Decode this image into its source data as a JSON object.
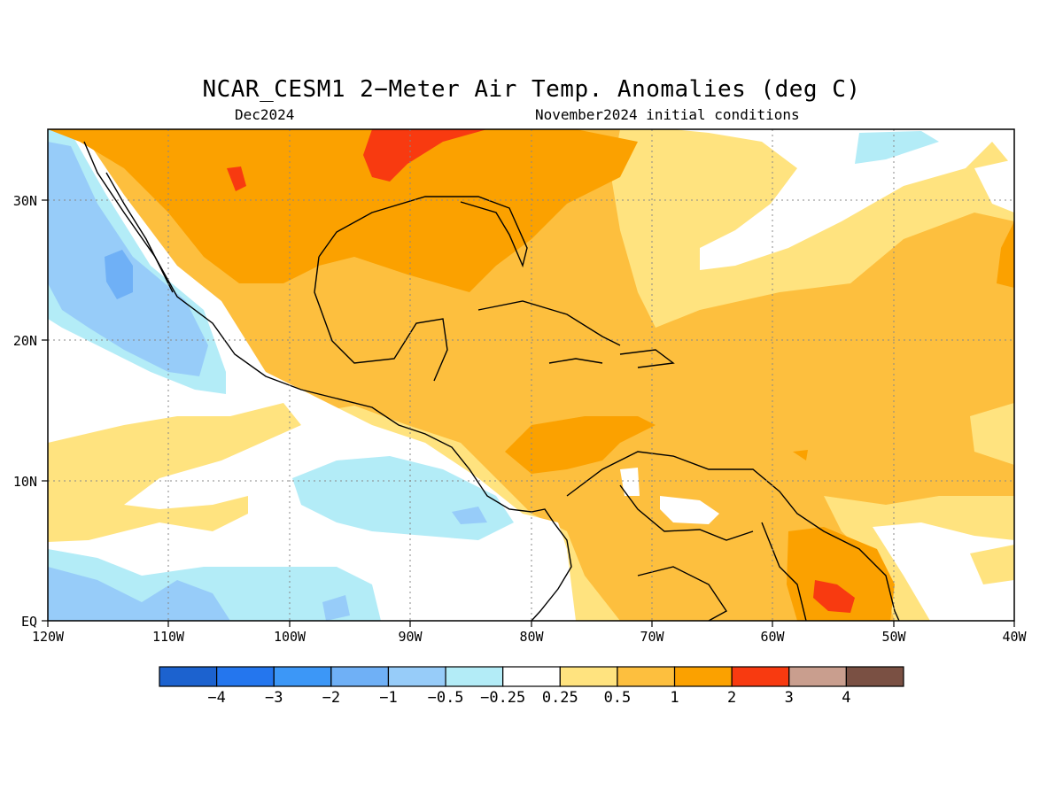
{
  "title": "NCAR_CESM1 2−Meter Air Temp. Anomalies (deg C)",
  "subtitle_left": "Dec2024",
  "subtitle_right": "November2024 initial conditions",
  "map": {
    "region": "Gulf of Mexico, Central America, Caribbean and tropical Atlantic",
    "lon_range": [
      -120,
      -40
    ],
    "lat_range": [
      0,
      35
    ],
    "x_tick_labels": [
      "120W",
      "110W",
      "100W",
      "90W",
      "80W",
      "70W",
      "60W",
      "50W",
      "40W"
    ],
    "y_tick_labels": [
      "EQ",
      "10N",
      "20N",
      "30N"
    ],
    "grid": "dotted"
  },
  "colorbar": {
    "labels": [
      "−4",
      "−3",
      "−2",
      "−1",
      "−0.5",
      "−0.25",
      "0.25",
      "0.5",
      "1",
      "2",
      "3",
      "4"
    ],
    "colors": [
      "#1c62cf",
      "#2476ee",
      "#3c97f7",
      "#6fb0f6",
      "#97ccf9",
      "#b3ecf7",
      "#ffffff",
      "#ffe37f",
      "#fdbf3e",
      "#fba100",
      "#f83a10",
      "#c99e8e",
      "#7a5043"
    ]
  }
}
